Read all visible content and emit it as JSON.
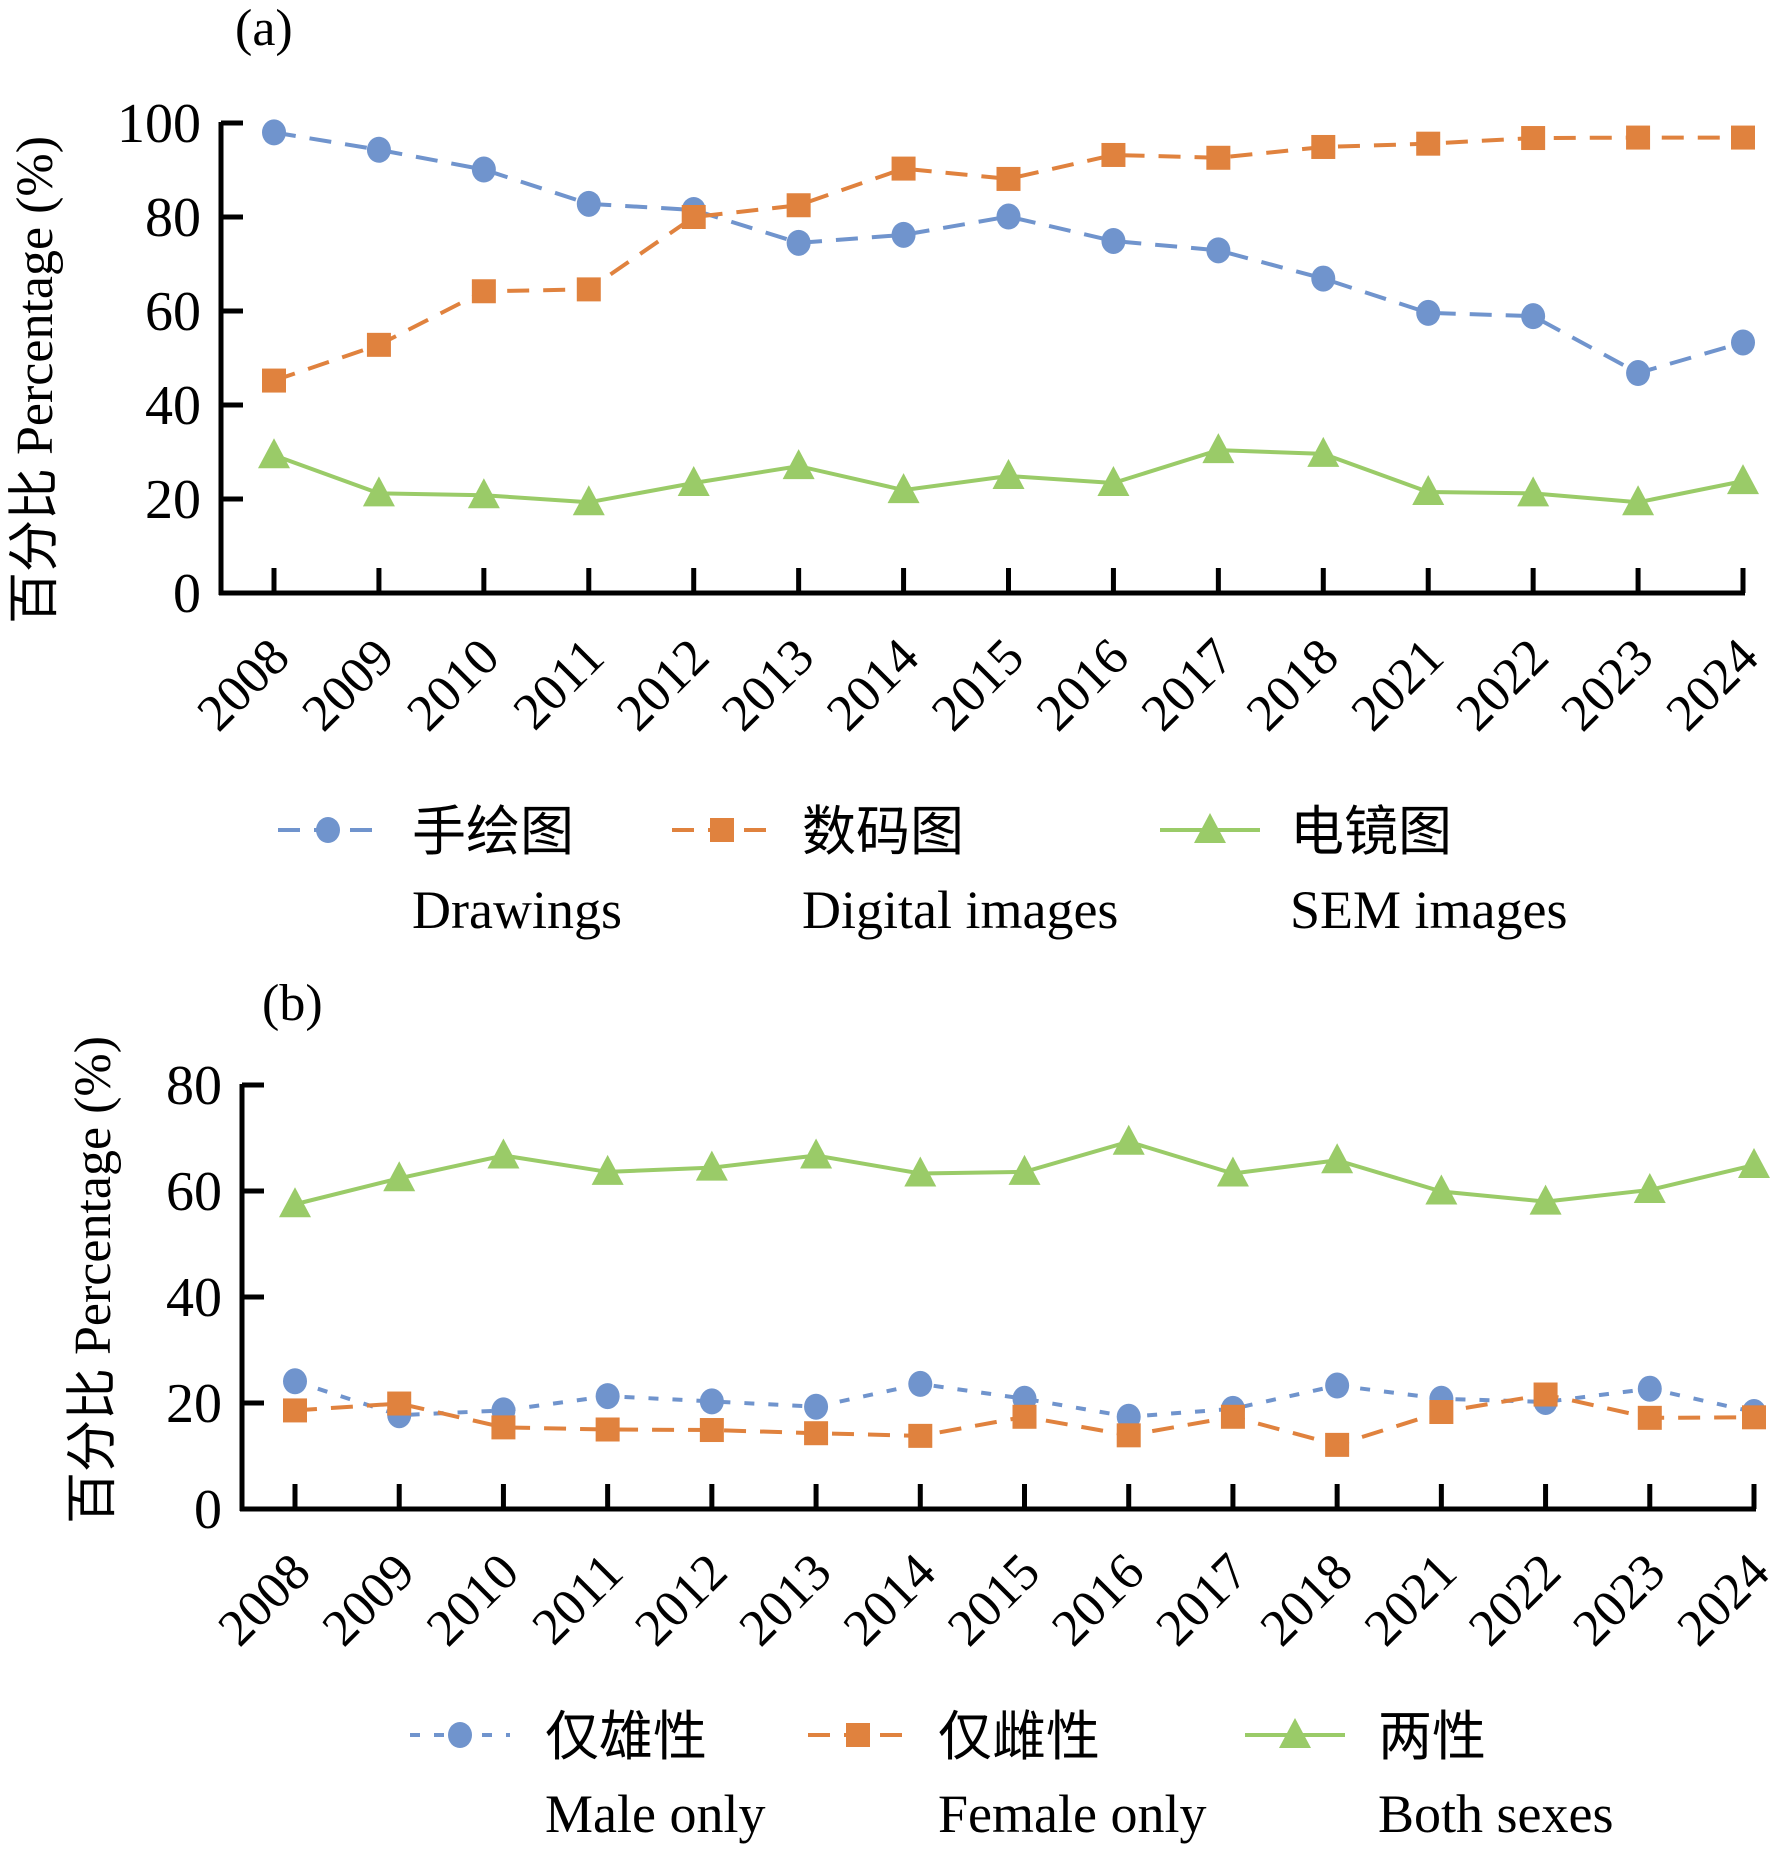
{
  "chart_data": [
    {
      "type": "line",
      "panel_label": "(a)",
      "title": "",
      "xlabel": "",
      "ylabel": "百分比 Percentage (%)",
      "ylim": [
        0,
        100
      ],
      "yticks": [
        0,
        20,
        40,
        60,
        80,
        100
      ],
      "grid": false,
      "legend_position": "bottom",
      "categories": [
        "2008",
        "2009",
        "2010",
        "2011",
        "2012",
        "2013",
        "2014",
        "2015",
        "2016",
        "2017",
        "2018",
        "2021",
        "2022",
        "2023",
        "2024"
      ],
      "series": [
        {
          "name": "手绘图 Drawings",
          "name_cn": "手绘图",
          "name_en": "Drawings",
          "color": "#7094CD",
          "marker": "circle",
          "line": "dashed",
          "values": [
            98,
            94.3,
            90.1,
            82.8,
            81.5,
            74.5,
            76.2,
            80.1,
            74.9,
            72.9,
            66.9,
            59.6,
            58.9,
            46.8,
            53.3
          ]
        },
        {
          "name": "数码图 Digital images",
          "name_cn": "数码图",
          "name_en": "Digital images",
          "color": "#E0823E",
          "marker": "square",
          "line": "dashed",
          "values": [
            45.2,
            52.8,
            64.2,
            64.6,
            80,
            82.5,
            90.3,
            88.1,
            93.2,
            92.6,
            94.9,
            95.6,
            96.8,
            96.9,
            96.9
          ]
        },
        {
          "name": "电镜图 SEM images",
          "name_cn": "电镜图",
          "name_en": "SEM images",
          "color": "#9ACB68",
          "marker": "triangle",
          "line": "solid",
          "values": [
            29.3,
            21.2,
            20.8,
            19.3,
            23.4,
            27,
            21.9,
            24.9,
            23.4,
            30.4,
            29.6,
            21.5,
            21.2,
            19.3,
            23.8
          ]
        }
      ]
    },
    {
      "type": "line",
      "panel_label": "(b)",
      "title": "",
      "xlabel": "",
      "ylabel": "百分比 Percentage (%)",
      "ylim": [
        0,
        80
      ],
      "yticks": [
        0,
        20,
        40,
        60,
        80
      ],
      "grid": false,
      "legend_position": "bottom",
      "categories": [
        "2008",
        "2009",
        "2010",
        "2011",
        "2012",
        "2013",
        "2014",
        "2015",
        "2016",
        "2017",
        "2018",
        "2021",
        "2022",
        "2023",
        "2024"
      ],
      "series": [
        {
          "name": "仅雄性 Male only",
          "name_cn": "仅雄性",
          "name_en": "Male only",
          "color": "#7094CD",
          "marker": "circle",
          "line": "dotted",
          "values": [
            24.1,
            17.7,
            18.6,
            21.3,
            20.3,
            19.3,
            23.6,
            20.8,
            17.4,
            18.9,
            23.3,
            20.8,
            20.2,
            22.7,
            18.3
          ]
        },
        {
          "name": "仅雌性 Female only",
          "name_cn": "仅雌性",
          "name_en": "Female only",
          "color": "#E0823E",
          "marker": "square",
          "line": "dashed",
          "values": [
            18.6,
            19.9,
            15.4,
            15,
            14.9,
            14.3,
            13.8,
            17.4,
            13.9,
            17.4,
            12.1,
            18.3,
            21.6,
            17.2,
            17.3
          ]
        },
        {
          "name": "两性 Both sexes",
          "name_cn": "两性",
          "name_en": "Both sexes",
          "color": "#9ACB68",
          "marker": "triangle",
          "line": "solid",
          "values": [
            57.5,
            62.4,
            66.7,
            63.6,
            64.4,
            66.7,
            63.3,
            63.6,
            69.3,
            63.3,
            65.8,
            59.9,
            58,
            60.2,
            64.9
          ]
        }
      ]
    }
  ]
}
